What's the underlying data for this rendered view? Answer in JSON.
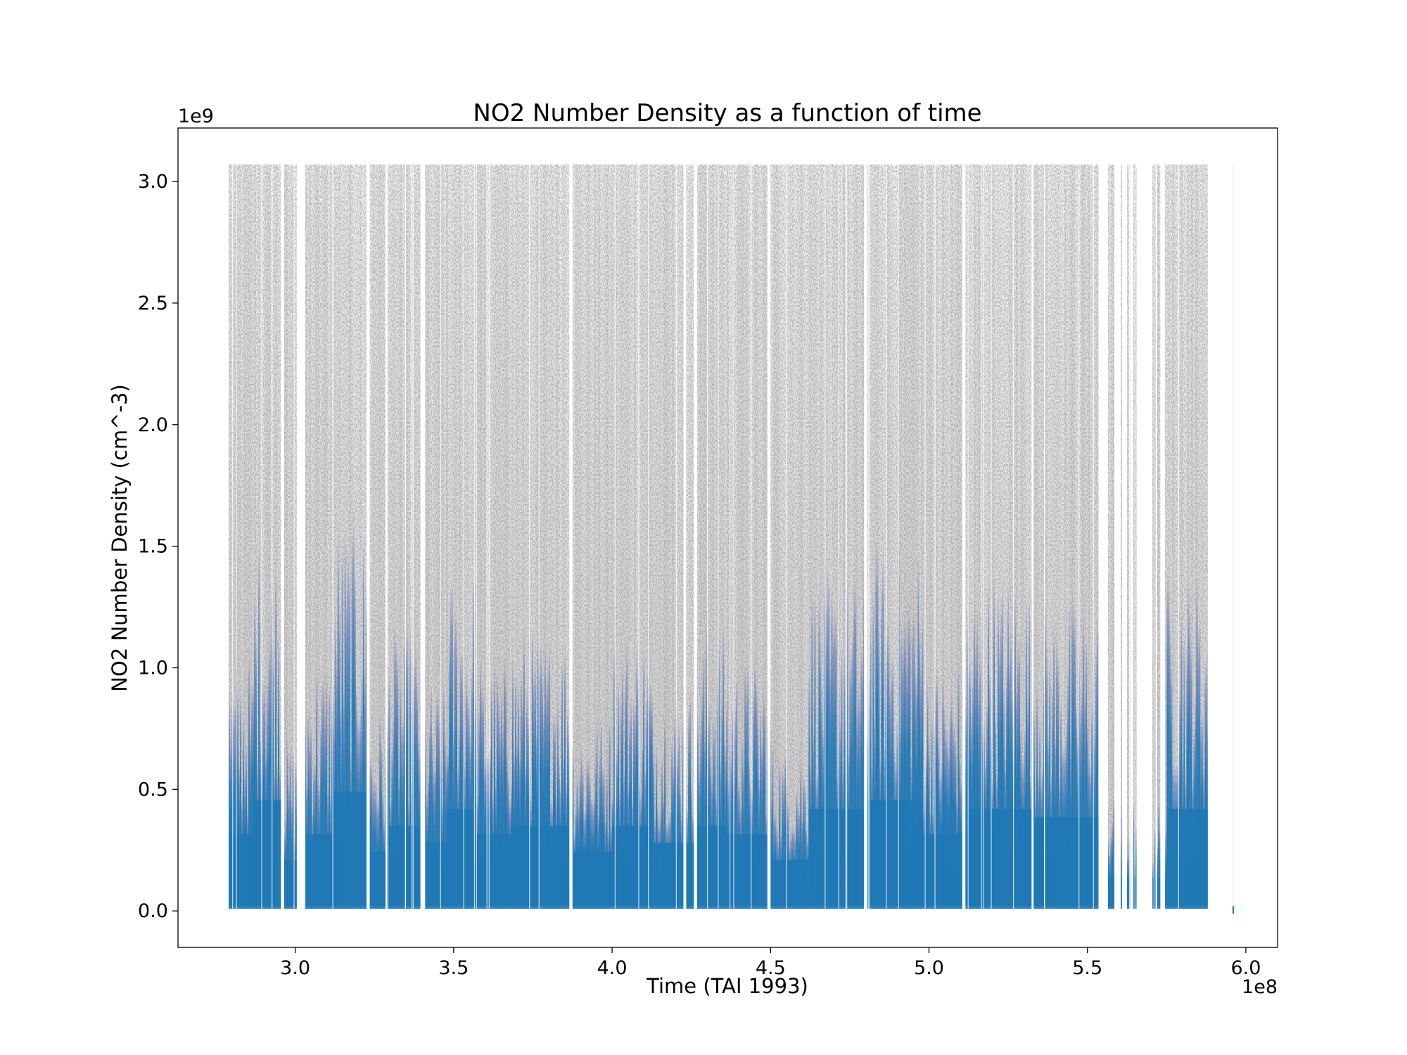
{
  "chart_data": {
    "type": "scatter",
    "title": "NO2 Number Density as a function of time",
    "xlabel": "Time (TAI 1993)",
    "ylabel": "NO2 Number Density (cm^-3)",
    "x_offset_label": "1e8",
    "y_offset_label": "1e9",
    "xlim": [
      2.63,
      6.1
    ],
    "ylim": [
      -0.15,
      3.22
    ],
    "xticks": [
      {
        "value": 3.0,
        "label": "3.0"
      },
      {
        "value": 3.5,
        "label": "3.5"
      },
      {
        "value": 4.0,
        "label": "4.0"
      },
      {
        "value": 4.5,
        "label": "4.5"
      },
      {
        "value": 5.0,
        "label": "5.0"
      },
      {
        "value": 5.5,
        "label": "5.5"
      },
      {
        "value": 6.0,
        "label": "6.0"
      }
    ],
    "yticks": [
      {
        "value": 0.0,
        "label": "0.0"
      },
      {
        "value": 0.5,
        "label": "0.5"
      },
      {
        "value": 1.0,
        "label": "1.0"
      },
      {
        "value": 1.5,
        "label": "1.5"
      },
      {
        "value": 2.0,
        "label": "2.0"
      },
      {
        "value": 2.5,
        "label": "2.5"
      },
      {
        "value": 3.0,
        "label": "3.0"
      }
    ],
    "grid": false,
    "x_range_data": [
      2.79,
      5.88
    ],
    "y_max_data": 3.07,
    "colors": {
      "points": "#1f77b4",
      "background_points": "#555555"
    },
    "gaps": [
      [
        2.955,
        2.965
      ],
      [
        3.005,
        3.03
      ],
      [
        3.225,
        3.235
      ],
      [
        3.285,
        3.29
      ],
      [
        3.395,
        3.41
      ],
      [
        3.865,
        3.875
      ],
      [
        4.225,
        4.232
      ],
      [
        4.258,
        4.268
      ],
      [
        4.49,
        4.5
      ],
      [
        4.795,
        4.805
      ],
      [
        5.105,
        5.115
      ],
      [
        5.325,
        5.33
      ],
      [
        5.535,
        5.565
      ],
      [
        5.585,
        5.605
      ],
      [
        5.61,
        5.625
      ],
      [
        5.635,
        5.645
      ],
      [
        5.655,
        5.705
      ],
      [
        5.715,
        5.72
      ],
      [
        5.73,
        5.745
      ],
      [
        5.88,
        5.955
      ]
    ],
    "isolated_points_x": [
      5.96
    ],
    "segments": [
      {
        "x": [
          2.79,
          2.87
        ],
        "blue_top": 0.9
      },
      {
        "x": [
          2.87,
          2.96
        ],
        "blue_top": 1.3
      },
      {
        "x": [
          2.96,
          3.03
        ],
        "blue_top": 0.6
      },
      {
        "x": [
          3.03,
          3.12
        ],
        "blue_top": 0.9
      },
      {
        "x": [
          3.12,
          3.23
        ],
        "blue_top": 1.4
      },
      {
        "x": [
          3.23,
          3.29
        ],
        "blue_top": 0.7
      },
      {
        "x": [
          3.29,
          3.4
        ],
        "blue_top": 1.0
      },
      {
        "x": [
          3.4,
          3.48
        ],
        "blue_top": 0.8
      },
      {
        "x": [
          3.48,
          3.56
        ],
        "blue_top": 1.2
      },
      {
        "x": [
          3.56,
          3.68
        ],
        "blue_top": 0.9
      },
      {
        "x": [
          3.68,
          3.87
        ],
        "blue_top": 1.0
      },
      {
        "x": [
          3.87,
          4.0
        ],
        "blue_top": 0.7
      },
      {
        "x": [
          4.0,
          4.12
        ],
        "blue_top": 1.0
      },
      {
        "x": [
          4.12,
          4.26
        ],
        "blue_top": 0.8
      },
      {
        "x": [
          4.26,
          4.36
        ],
        "blue_top": 1.0
      },
      {
        "x": [
          4.36,
          4.5
        ],
        "blue_top": 0.9
      },
      {
        "x": [
          4.5,
          4.62
        ],
        "blue_top": 0.6
      },
      {
        "x": [
          4.62,
          4.8
        ],
        "blue_top": 1.2
      },
      {
        "x": [
          4.8,
          4.98
        ],
        "blue_top": 1.3
      },
      {
        "x": [
          4.98,
          5.11
        ],
        "blue_top": 0.9
      },
      {
        "x": [
          5.11,
          5.33
        ],
        "blue_top": 1.2
      },
      {
        "x": [
          5.33,
          5.55
        ],
        "blue_top": 1.1
      },
      {
        "x": [
          5.55,
          5.75
        ],
        "blue_top": 0.4
      },
      {
        "x": [
          5.75,
          5.88
        ],
        "blue_top": 1.2
      }
    ]
  }
}
